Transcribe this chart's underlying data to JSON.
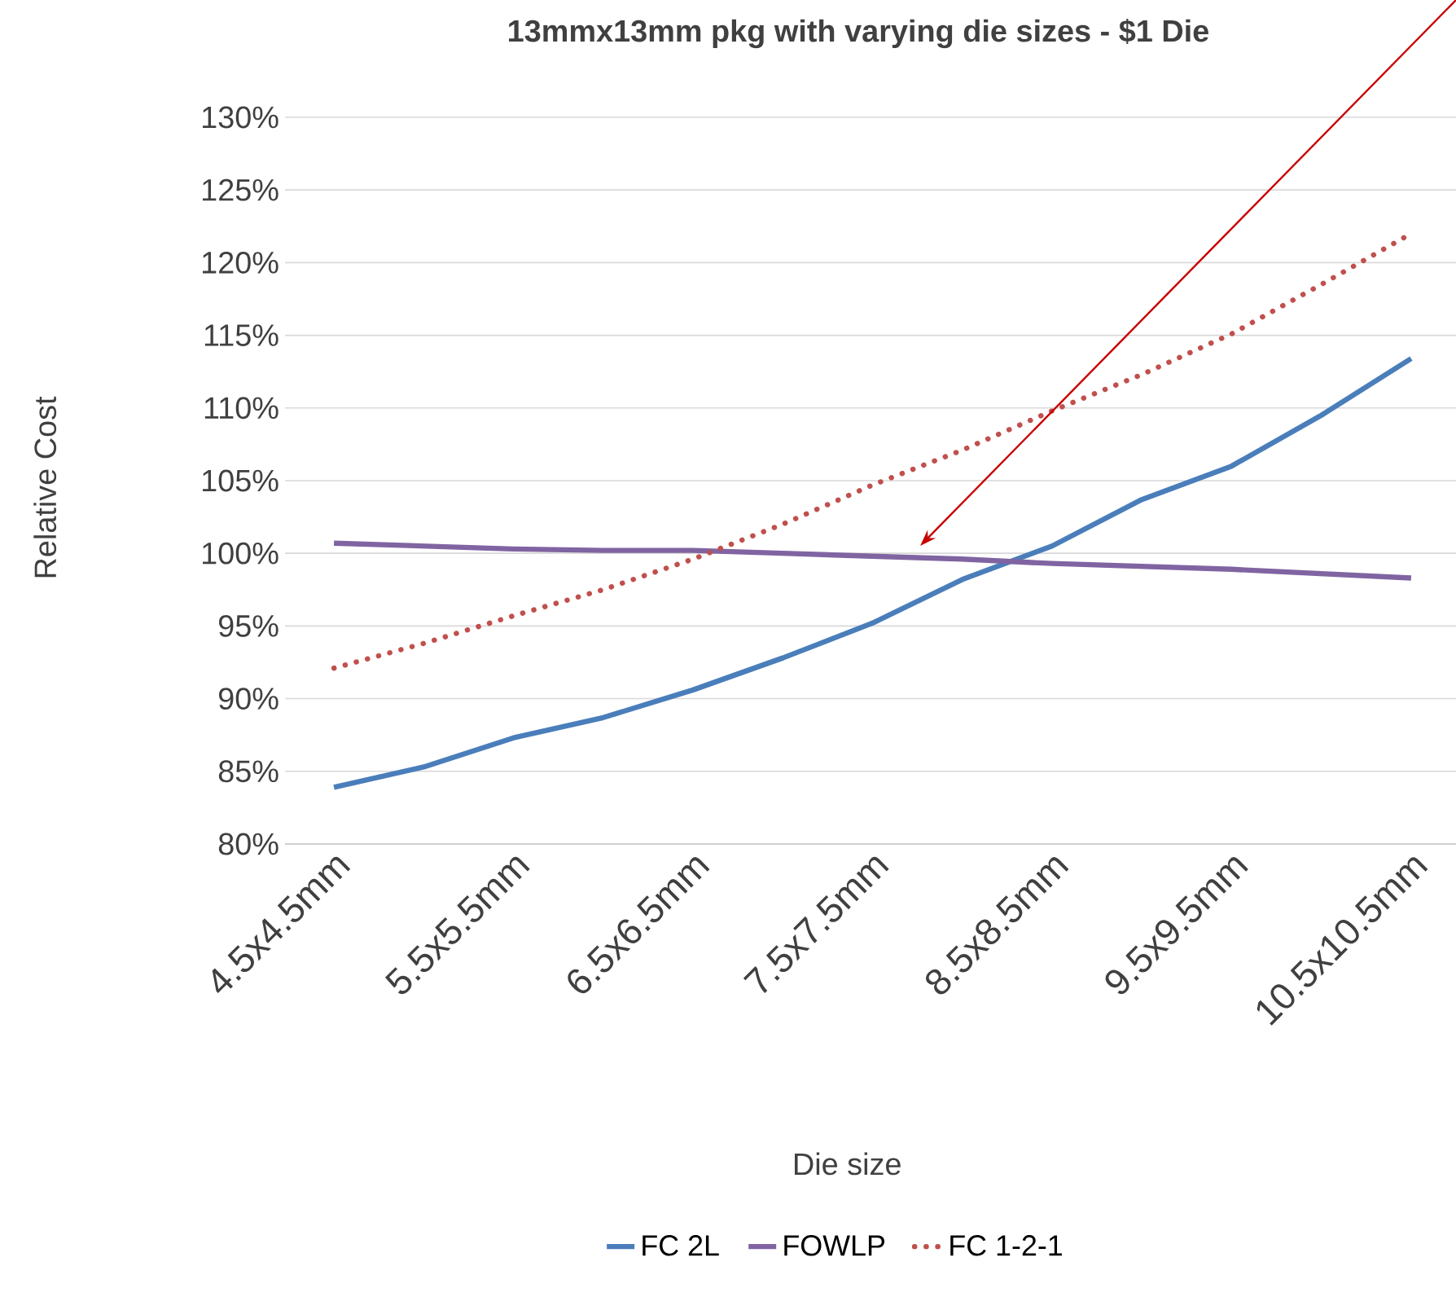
{
  "chart_data": {
    "type": "line",
    "title": "13mmx13mm pkg with varying die sizes - $1 Die",
    "xlabel": "Die size",
    "ylabel": "Relative Cost",
    "categories": [
      "4.5x4.5mm",
      null,
      "5.5x5.5mm",
      null,
      "6.5x6.5mm",
      null,
      "7.5x7.5mm",
      null,
      "8.5x8.5mm",
      null,
      "9.5x9.5mm",
      null,
      "10.5x10.5mm"
    ],
    "series": [
      {
        "name": "FC 2L",
        "color": "#4a7ebb",
        "line_style": "solid",
        "values": [
          83.9,
          85.3,
          87.3,
          88.7,
          90.6,
          92.8,
          95.2,
          98.2,
          100.5,
          103.7,
          106.0,
          109.5,
          113.4
        ]
      },
      {
        "name": "FOWLP",
        "color": "#8064a2",
        "line_style": "solid",
        "values": [
          100.7,
          100.5,
          100.3,
          100.2,
          100.2,
          100.0,
          99.8,
          99.6,
          99.3,
          99.1,
          98.9,
          98.6,
          98.3
        ]
      },
      {
        "name": "FC 1-2-1",
        "color": "#c0504d",
        "line_style": "dotted",
        "values": [
          92.1,
          93.8,
          95.7,
          97.5,
          99.6,
          102.0,
          104.7,
          107.1,
          109.8,
          112.3,
          115.1,
          118.5,
          122.0
        ]
      }
    ],
    "ylim": [
      80,
      130
    ],
    "yticks": [
      {
        "value": 80,
        "label": "80%"
      },
      {
        "value": 85,
        "label": "85%"
      },
      {
        "value": 90,
        "label": "90%"
      },
      {
        "value": 95,
        "label": "95%"
      },
      {
        "value": 100,
        "label": "100%"
      },
      {
        "value": 105,
        "label": "105%"
      },
      {
        "value": 110,
        "label": "110%"
      },
      {
        "value": 115,
        "label": "115%"
      },
      {
        "value": 120,
        "label": "120%"
      },
      {
        "value": 125,
        "label": "125%"
      },
      {
        "value": 130,
        "label": "130%"
      }
    ],
    "grid": "y",
    "legend": "bottom",
    "marker": "none"
  }
}
